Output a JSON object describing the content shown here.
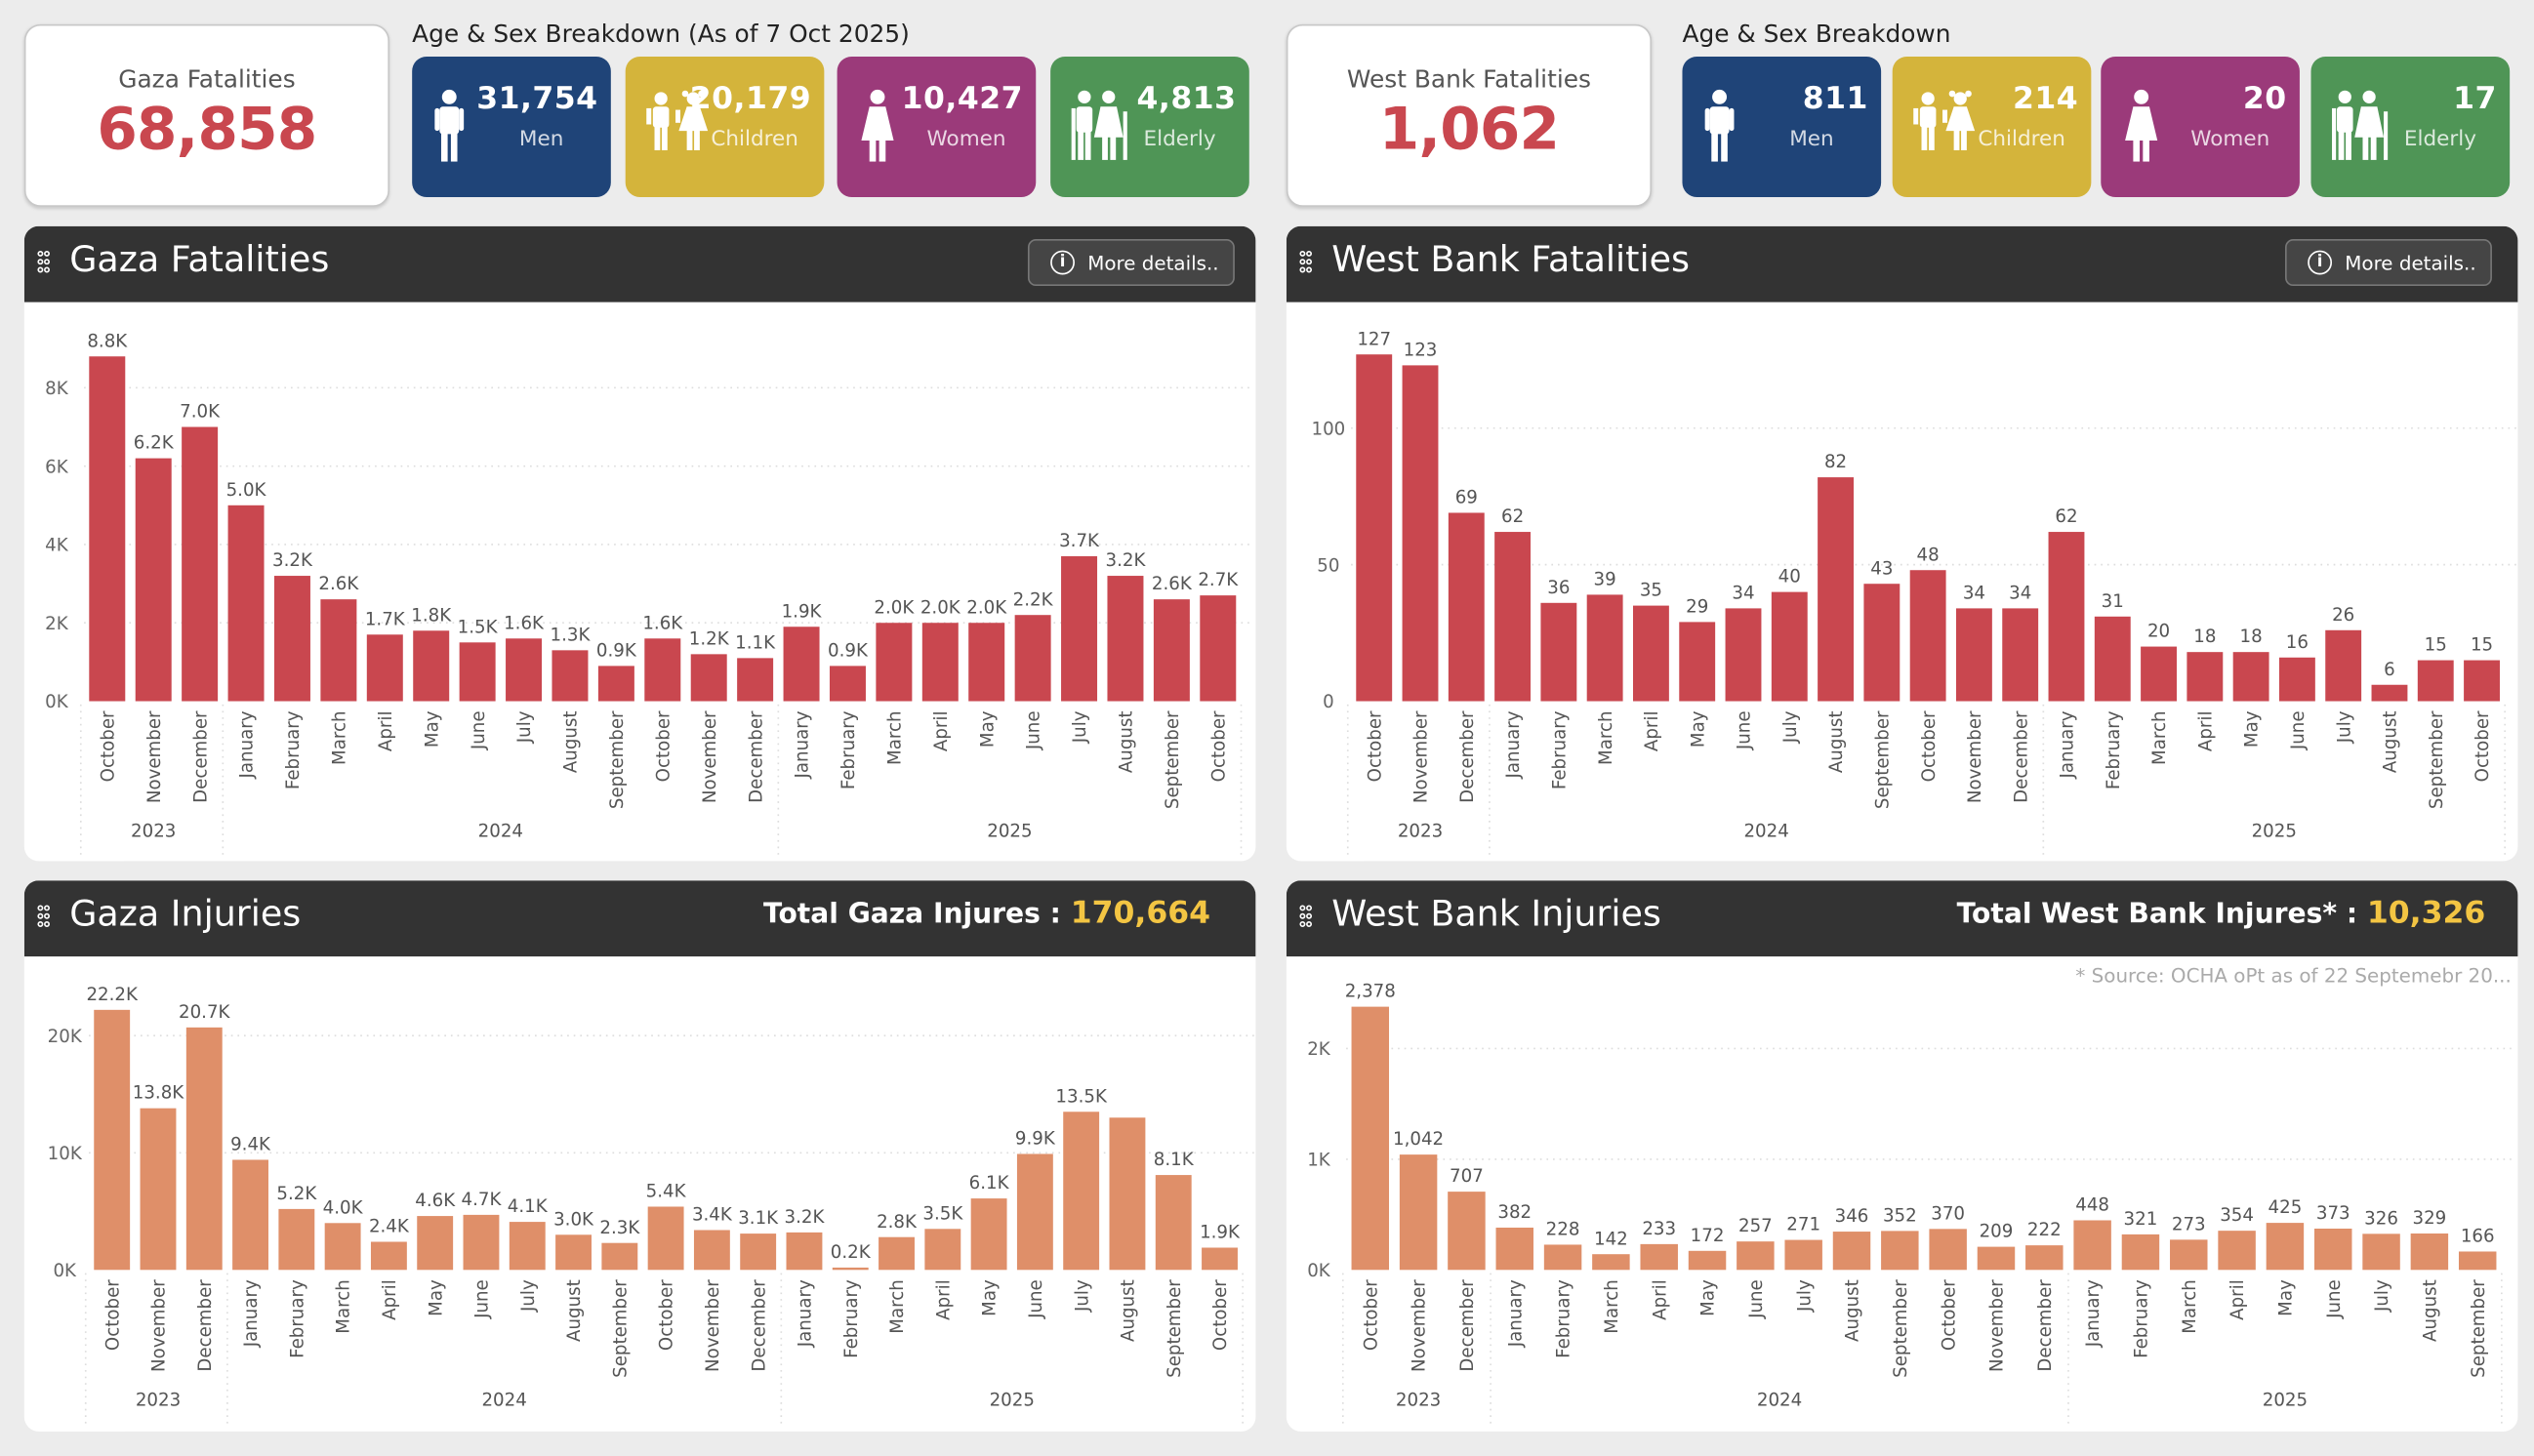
{
  "gaza_summary": {
    "label": "Gaza Fatalities",
    "total": "68,858"
  },
  "gaza_breakdown": {
    "title": "Age & Sex Breakdown (As of 7 Oct 2025)",
    "items": [
      {
        "icon": "man-icon",
        "value": "31,754",
        "label": "Men",
        "color": "#1f4478"
      },
      {
        "icon": "children-icon",
        "value": "20,179",
        "label": "Children",
        "color": "#d4b43b"
      },
      {
        "icon": "woman-icon",
        "value": "10,427",
        "label": "Women",
        "color": "#9b3a7a"
      },
      {
        "icon": "elderly-icon",
        "value": "4,813",
        "label": "Elderly",
        "color": "#4f9556"
      }
    ]
  },
  "wb_summary": {
    "label": "West Bank Fatalities",
    "total": "1,062"
  },
  "wb_breakdown": {
    "title": "Age & Sex Breakdown",
    "items": [
      {
        "icon": "man-icon",
        "value": "811",
        "label": "Men",
        "color": "#1f4478"
      },
      {
        "icon": "children-icon",
        "value": "214",
        "label": "Children",
        "color": "#d4b43b"
      },
      {
        "icon": "woman-icon",
        "value": "20",
        "label": "Women",
        "color": "#9b3a7a"
      },
      {
        "icon": "elderly-icon",
        "value": "17",
        "label": "Elderly",
        "color": "#4f9556"
      }
    ]
  },
  "panels": {
    "gaza_fatalities": {
      "title": "Gaza Fatalities",
      "more_label": "More details.."
    },
    "wb_fatalities": {
      "title": "West Bank Fatalities",
      "more_label": "More details.."
    },
    "gaza_injuries": {
      "title": "Gaza Injuries",
      "total_label": "Total Gaza Injures : ",
      "total_value": "170,664"
    },
    "wb_injuries": {
      "title": "West Bank Injuries",
      "total_label": "Total West Bank Injures* : ",
      "total_value": "10,326",
      "source_note": "* Source: OCHA oPt as of 22 Septemebr 20..."
    }
  },
  "chart_data": [
    {
      "id": "gaza_fatalities",
      "type": "bar",
      "color": "#c9474f",
      "categories": [
        "October",
        "November",
        "December",
        "January",
        "February",
        "March",
        "April",
        "May",
        "June",
        "July",
        "August",
        "September",
        "October",
        "November",
        "December",
        "January",
        "February",
        "March",
        "April",
        "May",
        "June",
        "July",
        "August",
        "September",
        "October"
      ],
      "years": [
        {
          "label": "2023",
          "count": 3
        },
        {
          "label": "2024",
          "count": 12
        },
        {
          "label": "2025",
          "count": 10
        }
      ],
      "values": [
        8800,
        6200,
        7000,
        5000,
        3200,
        2600,
        1700,
        1800,
        1500,
        1600,
        1300,
        900,
        1600,
        1200,
        1100,
        1900,
        900,
        2000,
        2000,
        2000,
        2200,
        3700,
        3200,
        2600,
        2700
      ],
      "labels": [
        "8.8K",
        "6.2K",
        "7.0K",
        "5.0K",
        "3.2K",
        "2.6K",
        "1.7K",
        "1.8K",
        "1.5K",
        "1.6K",
        "1.3K",
        "0.9K",
        "1.6K",
        "1.2K",
        "1.1K",
        "1.9K",
        "0.9K",
        "2.0K",
        "2.0K",
        "2.0K",
        "2.2K",
        "3.7K",
        "3.2K",
        "2.6K",
        "2.7K"
      ],
      "y_ticks": [
        {
          "v": 0,
          "t": "0K"
        },
        {
          "v": 2000,
          "t": "2K"
        },
        {
          "v": 4000,
          "t": "4K"
        },
        {
          "v": 6000,
          "t": "6K"
        },
        {
          "v": 8000,
          "t": "8K"
        }
      ],
      "grid": true
    },
    {
      "id": "wb_fatalities",
      "type": "bar",
      "color": "#c9474f",
      "categories": [
        "October",
        "November",
        "December",
        "January",
        "February",
        "March",
        "April",
        "May",
        "June",
        "July",
        "August",
        "September",
        "October",
        "November",
        "December",
        "January",
        "February",
        "March",
        "April",
        "May",
        "June",
        "July",
        "August",
        "September",
        "October"
      ],
      "years": [
        {
          "label": "2023",
          "count": 3
        },
        {
          "label": "2024",
          "count": 12
        },
        {
          "label": "2025",
          "count": 10
        }
      ],
      "values": [
        127,
        123,
        69,
        62,
        36,
        39,
        35,
        29,
        34,
        40,
        82,
        43,
        48,
        34,
        34,
        62,
        31,
        20,
        18,
        18,
        16,
        26,
        6,
        15,
        15
      ],
      "labels": [
        "127",
        "123",
        "69",
        "62",
        "36",
        "39",
        "35",
        "29",
        "34",
        "40",
        "82",
        "43",
        "48",
        "34",
        "34",
        "62",
        "31",
        "20",
        "18",
        "18",
        "16",
        "26",
        "6",
        "15",
        "15"
      ],
      "y_ticks": [
        {
          "v": 0,
          "t": "0"
        },
        {
          "v": 50,
          "t": "50"
        },
        {
          "v": 100,
          "t": "100"
        }
      ],
      "grid": true
    },
    {
      "id": "gaza_injuries",
      "type": "bar",
      "color": "#df8f69",
      "categories": [
        "October",
        "November",
        "December",
        "January",
        "February",
        "March",
        "April",
        "May",
        "June",
        "July",
        "August",
        "September",
        "October",
        "November",
        "December",
        "January",
        "February",
        "March",
        "April",
        "May",
        "June",
        "July",
        "August",
        "September",
        "October"
      ],
      "years": [
        {
          "label": "2023",
          "count": 3
        },
        {
          "label": "2024",
          "count": 12
        },
        {
          "label": "2025",
          "count": 10
        }
      ],
      "values": [
        22200,
        13800,
        20700,
        9400,
        5200,
        4000,
        2400,
        4600,
        4700,
        4100,
        3000,
        2300,
        5400,
        3400,
        3100,
        3200,
        200,
        2800,
        3500,
        6100,
        9900,
        13500,
        13000,
        8100,
        1900
      ],
      "labels": [
        "22.2K",
        "13.8K",
        "20.7K",
        "9.4K",
        "5.2K",
        "4.0K",
        "2.4K",
        "4.6K",
        "4.7K",
        "4.1K",
        "3.0K",
        "2.3K",
        "5.4K",
        "3.4K",
        "3.1K",
        "3.2K",
        "0.2K",
        "2.8K",
        "3.5K",
        "6.1K",
        "9.9K",
        "13.5K",
        "",
        "8.1K",
        "1.9K"
      ],
      "y_ticks": [
        {
          "v": 0,
          "t": "0K"
        },
        {
          "v": 10000,
          "t": "10K"
        },
        {
          "v": 20000,
          "t": "20K"
        }
      ],
      "grid": true
    },
    {
      "id": "wb_injuries",
      "type": "bar",
      "color": "#df8f69",
      "categories": [
        "October",
        "November",
        "December",
        "January",
        "February",
        "March",
        "April",
        "May",
        "June",
        "July",
        "August",
        "September",
        "October",
        "November",
        "December",
        "January",
        "February",
        "March",
        "April",
        "May",
        "June",
        "July",
        "August",
        "September"
      ],
      "years": [
        {
          "label": "2023",
          "count": 3
        },
        {
          "label": "2024",
          "count": 12
        },
        {
          "label": "2025",
          "count": 9
        }
      ],
      "values": [
        2378,
        1042,
        707,
        382,
        228,
        142,
        233,
        172,
        257,
        271,
        346,
        352,
        370,
        209,
        222,
        448,
        321,
        273,
        354,
        425,
        373,
        326,
        329,
        166
      ],
      "labels": [
        "2,378",
        "1,042",
        "707",
        "382",
        "228",
        "142",
        "233",
        "172",
        "257",
        "271",
        "346",
        "352",
        "370",
        "209",
        "222",
        "448",
        "321",
        "273",
        "354",
        "425",
        "373",
        "326",
        "329",
        "166"
      ],
      "y_ticks": [
        {
          "v": 0,
          "t": "0K"
        },
        {
          "v": 1000,
          "t": "1K"
        },
        {
          "v": 2000,
          "t": "2K"
        }
      ],
      "grid": true
    }
  ]
}
